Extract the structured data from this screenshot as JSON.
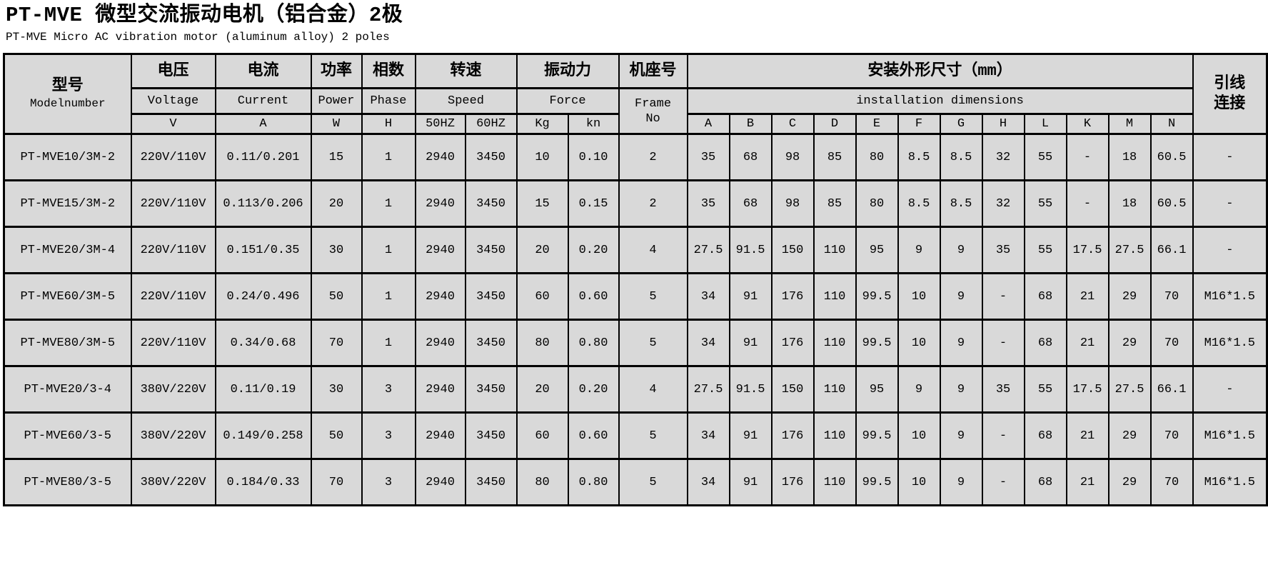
{
  "page": {
    "title": "PT-MVE 微型交流振动电机（铝合金）2极",
    "subtitle": "PT-MVE Micro AC vibration motor (aluminum alloy) 2 poles"
  },
  "colors": {
    "table_background": "#d9d9d9",
    "border": "#000000",
    "page_background": "#ffffff",
    "text": "#000000"
  },
  "table": {
    "header": {
      "model": {
        "zh": "型号",
        "en": "Modelnumber"
      },
      "voltage": {
        "zh": "电压",
        "en": "Voltage",
        "unit": "V"
      },
      "current": {
        "zh": "电流",
        "en": "Current",
        "unit": "A"
      },
      "power": {
        "zh": "功率",
        "en": "Power",
        "unit": "W"
      },
      "phase": {
        "zh": "相数",
        "en": "Phase",
        "unit": "H"
      },
      "speed": {
        "zh": "转速",
        "en": "Speed",
        "units": [
          "50HZ",
          "60HZ"
        ]
      },
      "force": {
        "zh": "振动力",
        "en": "Force",
        "units": [
          "Kg",
          "kn"
        ]
      },
      "frame": {
        "zh": "机座号",
        "en_line1": "Frame",
        "en_line2": "No"
      },
      "dimensions": {
        "zh": "安装外形尺寸（mm）",
        "en": "installation dimensions",
        "letters": [
          "A",
          "B",
          "C",
          "D",
          "E",
          "F",
          "G",
          "H",
          "L",
          "K",
          "M",
          "N"
        ]
      },
      "lead": {
        "zh_line1": "引线",
        "zh_line2": "连接"
      }
    },
    "rows": [
      {
        "model": "PT-MVE10/3M-2",
        "voltage": "220V/110V",
        "current": "0.11/0.201",
        "power": "15",
        "phase": "1",
        "speed_50hz": "2940",
        "speed_60hz": "3450",
        "force_kg": "10",
        "force_kn": "0.10",
        "frame_no": "2",
        "dims": [
          "35",
          "68",
          "98",
          "85",
          "80",
          "8.5",
          "8.5",
          "32",
          "55",
          "-",
          "18",
          "60.5"
        ],
        "lead": "-"
      },
      {
        "model": "PT-MVE15/3M-2",
        "voltage": "220V/110V",
        "current": "0.113/0.206",
        "power": "20",
        "phase": "1",
        "speed_50hz": "2940",
        "speed_60hz": "3450",
        "force_kg": "15",
        "force_kn": "0.15",
        "frame_no": "2",
        "dims": [
          "35",
          "68",
          "98",
          "85",
          "80",
          "8.5",
          "8.5",
          "32",
          "55",
          "-",
          "18",
          "60.5"
        ],
        "lead": "-"
      },
      {
        "model": "PT-MVE20/3M-4",
        "voltage": "220V/110V",
        "current": "0.151/0.35",
        "power": "30",
        "phase": "1",
        "speed_50hz": "2940",
        "speed_60hz": "3450",
        "force_kg": "20",
        "force_kn": "0.20",
        "frame_no": "4",
        "dims": [
          "27.5",
          "91.5",
          "150",
          "110",
          "95",
          "9",
          "9",
          "35",
          "55",
          "17.5",
          "27.5",
          "66.1"
        ],
        "lead": "-"
      },
      {
        "model": "PT-MVE60/3M-5",
        "voltage": "220V/110V",
        "current": "0.24/0.496",
        "power": "50",
        "phase": "1",
        "speed_50hz": "2940",
        "speed_60hz": "3450",
        "force_kg": "60",
        "force_kn": "0.60",
        "frame_no": "5",
        "dims": [
          "34",
          "91",
          "176",
          "110",
          "99.5",
          "10",
          "9",
          "-",
          "68",
          "21",
          "29",
          "70"
        ],
        "lead": "M16*1.5"
      },
      {
        "model": "PT-MVE80/3M-5",
        "voltage": "220V/110V",
        "current": "0.34/0.68",
        "power": "70",
        "phase": "1",
        "speed_50hz": "2940",
        "speed_60hz": "3450",
        "force_kg": "80",
        "force_kn": "0.80",
        "frame_no": "5",
        "dims": [
          "34",
          "91",
          "176",
          "110",
          "99.5",
          "10",
          "9",
          "-",
          "68",
          "21",
          "29",
          "70"
        ],
        "lead": "M16*1.5"
      },
      {
        "model": "PT-MVE20/3-4",
        "voltage": "380V/220V",
        "current": "0.11/0.19",
        "power": "30",
        "phase": "3",
        "speed_50hz": "2940",
        "speed_60hz": "3450",
        "force_kg": "20",
        "force_kn": "0.20",
        "frame_no": "4",
        "dims": [
          "27.5",
          "91.5",
          "150",
          "110",
          "95",
          "9",
          "9",
          "35",
          "55",
          "17.5",
          "27.5",
          "66.1"
        ],
        "lead": "-"
      },
      {
        "model": "PT-MVE60/3-5",
        "voltage": "380V/220V",
        "current": "0.149/0.258",
        "power": "50",
        "phase": "3",
        "speed_50hz": "2940",
        "speed_60hz": "3450",
        "force_kg": "60",
        "force_kn": "0.60",
        "frame_no": "5",
        "dims": [
          "34",
          "91",
          "176",
          "110",
          "99.5",
          "10",
          "9",
          "-",
          "68",
          "21",
          "29",
          "70"
        ],
        "lead": "M16*1.5"
      },
      {
        "model": "PT-MVE80/3-5",
        "voltage": "380V/220V",
        "current": "0.184/0.33",
        "power": "70",
        "phase": "3",
        "speed_50hz": "2940",
        "speed_60hz": "3450",
        "force_kg": "80",
        "force_kn": "0.80",
        "frame_no": "5",
        "dims": [
          "34",
          "91",
          "176",
          "110",
          "99.5",
          "10",
          "9",
          "-",
          "68",
          "21",
          "29",
          "70"
        ],
        "lead": "M16*1.5"
      }
    ]
  }
}
